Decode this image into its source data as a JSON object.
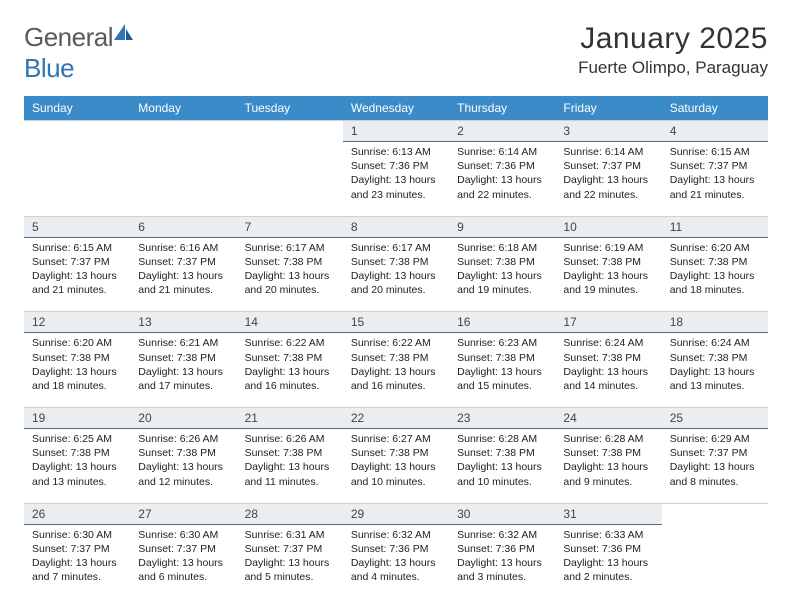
{
  "logo": {
    "text_gray": "General",
    "text_blue": "Blue"
  },
  "header": {
    "title": "January 2025",
    "location": "Fuerte Olimpo, Paraguay"
  },
  "colors": {
    "header_blue": "#3b8bc9",
    "daynum_bg": "#eaeef1",
    "daynum_border": "#4a6b8a",
    "logo_gray": "#5a5a5a",
    "logo_blue": "#2e75b6"
  },
  "weekdays": [
    "Sunday",
    "Monday",
    "Tuesday",
    "Wednesday",
    "Thursday",
    "Friday",
    "Saturday"
  ],
  "weeks": [
    {
      "days": [
        null,
        null,
        null,
        {
          "n": "1",
          "sunrise": "6:13 AM",
          "sunset": "7:36 PM",
          "daylight": "13 hours and 23 minutes."
        },
        {
          "n": "2",
          "sunrise": "6:14 AM",
          "sunset": "7:36 PM",
          "daylight": "13 hours and 22 minutes."
        },
        {
          "n": "3",
          "sunrise": "6:14 AM",
          "sunset": "7:37 PM",
          "daylight": "13 hours and 22 minutes."
        },
        {
          "n": "4",
          "sunrise": "6:15 AM",
          "sunset": "7:37 PM",
          "daylight": "13 hours and 21 minutes."
        }
      ]
    },
    {
      "days": [
        {
          "n": "5",
          "sunrise": "6:15 AM",
          "sunset": "7:37 PM",
          "daylight": "13 hours and 21 minutes."
        },
        {
          "n": "6",
          "sunrise": "6:16 AM",
          "sunset": "7:37 PM",
          "daylight": "13 hours and 21 minutes."
        },
        {
          "n": "7",
          "sunrise": "6:17 AM",
          "sunset": "7:38 PM",
          "daylight": "13 hours and 20 minutes."
        },
        {
          "n": "8",
          "sunrise": "6:17 AM",
          "sunset": "7:38 PM",
          "daylight": "13 hours and 20 minutes."
        },
        {
          "n": "9",
          "sunrise": "6:18 AM",
          "sunset": "7:38 PM",
          "daylight": "13 hours and 19 minutes."
        },
        {
          "n": "10",
          "sunrise": "6:19 AM",
          "sunset": "7:38 PM",
          "daylight": "13 hours and 19 minutes."
        },
        {
          "n": "11",
          "sunrise": "6:20 AM",
          "sunset": "7:38 PM",
          "daylight": "13 hours and 18 minutes."
        }
      ]
    },
    {
      "days": [
        {
          "n": "12",
          "sunrise": "6:20 AM",
          "sunset": "7:38 PM",
          "daylight": "13 hours and 18 minutes."
        },
        {
          "n": "13",
          "sunrise": "6:21 AM",
          "sunset": "7:38 PM",
          "daylight": "13 hours and 17 minutes."
        },
        {
          "n": "14",
          "sunrise": "6:22 AM",
          "sunset": "7:38 PM",
          "daylight": "13 hours and 16 minutes."
        },
        {
          "n": "15",
          "sunrise": "6:22 AM",
          "sunset": "7:38 PM",
          "daylight": "13 hours and 16 minutes."
        },
        {
          "n": "16",
          "sunrise": "6:23 AM",
          "sunset": "7:38 PM",
          "daylight": "13 hours and 15 minutes."
        },
        {
          "n": "17",
          "sunrise": "6:24 AM",
          "sunset": "7:38 PM",
          "daylight": "13 hours and 14 minutes."
        },
        {
          "n": "18",
          "sunrise": "6:24 AM",
          "sunset": "7:38 PM",
          "daylight": "13 hours and 13 minutes."
        }
      ]
    },
    {
      "days": [
        {
          "n": "19",
          "sunrise": "6:25 AM",
          "sunset": "7:38 PM",
          "daylight": "13 hours and 13 minutes."
        },
        {
          "n": "20",
          "sunrise": "6:26 AM",
          "sunset": "7:38 PM",
          "daylight": "13 hours and 12 minutes."
        },
        {
          "n": "21",
          "sunrise": "6:26 AM",
          "sunset": "7:38 PM",
          "daylight": "13 hours and 11 minutes."
        },
        {
          "n": "22",
          "sunrise": "6:27 AM",
          "sunset": "7:38 PM",
          "daylight": "13 hours and 10 minutes."
        },
        {
          "n": "23",
          "sunrise": "6:28 AM",
          "sunset": "7:38 PM",
          "daylight": "13 hours and 10 minutes."
        },
        {
          "n": "24",
          "sunrise": "6:28 AM",
          "sunset": "7:38 PM",
          "daylight": "13 hours and 9 minutes."
        },
        {
          "n": "25",
          "sunrise": "6:29 AM",
          "sunset": "7:37 PM",
          "daylight": "13 hours and 8 minutes."
        }
      ]
    },
    {
      "days": [
        {
          "n": "26",
          "sunrise": "6:30 AM",
          "sunset": "7:37 PM",
          "daylight": "13 hours and 7 minutes."
        },
        {
          "n": "27",
          "sunrise": "6:30 AM",
          "sunset": "7:37 PM",
          "daylight": "13 hours and 6 minutes."
        },
        {
          "n": "28",
          "sunrise": "6:31 AM",
          "sunset": "7:37 PM",
          "daylight": "13 hours and 5 minutes."
        },
        {
          "n": "29",
          "sunrise": "6:32 AM",
          "sunset": "7:36 PM",
          "daylight": "13 hours and 4 minutes."
        },
        {
          "n": "30",
          "sunrise": "6:32 AM",
          "sunset": "7:36 PM",
          "daylight": "13 hours and 3 minutes."
        },
        {
          "n": "31",
          "sunrise": "6:33 AM",
          "sunset": "7:36 PM",
          "daylight": "13 hours and 2 minutes."
        },
        null
      ]
    }
  ],
  "labels": {
    "sunrise": "Sunrise:",
    "sunset": "Sunset:",
    "daylight": "Daylight:"
  }
}
